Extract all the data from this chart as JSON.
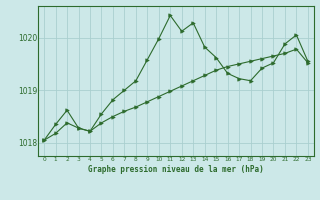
{
  "title": "Graphe pression niveau de la mer (hPa)",
  "background_color": "#cce8e8",
  "grid_color": "#aacfcf",
  "line_color": "#2d6b2d",
  "marker_color": "#2d6b2d",
  "xlim": [
    -0.5,
    23.5
  ],
  "ylim": [
    1017.75,
    1020.6
  ],
  "yticks": [
    1018,
    1019,
    1020
  ],
  "xticks": [
    0,
    1,
    2,
    3,
    4,
    5,
    6,
    7,
    8,
    9,
    10,
    11,
    12,
    13,
    14,
    15,
    16,
    17,
    18,
    19,
    20,
    21,
    22,
    23
  ],
  "series1_x": [
    0,
    1,
    2,
    3,
    4,
    5,
    6,
    7,
    8,
    9,
    10,
    11,
    12,
    13,
    14,
    15,
    16,
    17,
    18,
    19,
    20,
    21,
    22,
    23
  ],
  "series1_y": [
    1018.05,
    1018.35,
    1018.62,
    1018.28,
    1018.22,
    1018.55,
    1018.82,
    1019.0,
    1019.18,
    1019.58,
    1019.98,
    1020.42,
    1020.12,
    1020.28,
    1019.82,
    1019.62,
    1019.32,
    1019.22,
    1019.18,
    1019.42,
    1019.52,
    1019.88,
    1020.05,
    1019.55
  ],
  "series2_x": [
    0,
    1,
    2,
    3,
    4,
    5,
    6,
    7,
    8,
    9,
    10,
    11,
    12,
    13,
    14,
    15,
    16,
    17,
    18,
    19,
    20,
    21,
    22,
    23
  ],
  "series2_y": [
    1018.05,
    1018.18,
    1018.38,
    1018.28,
    1018.22,
    1018.38,
    1018.5,
    1018.6,
    1018.68,
    1018.78,
    1018.88,
    1018.98,
    1019.08,
    1019.18,
    1019.28,
    1019.38,
    1019.45,
    1019.5,
    1019.55,
    1019.6,
    1019.65,
    1019.7,
    1019.78,
    1019.52
  ]
}
